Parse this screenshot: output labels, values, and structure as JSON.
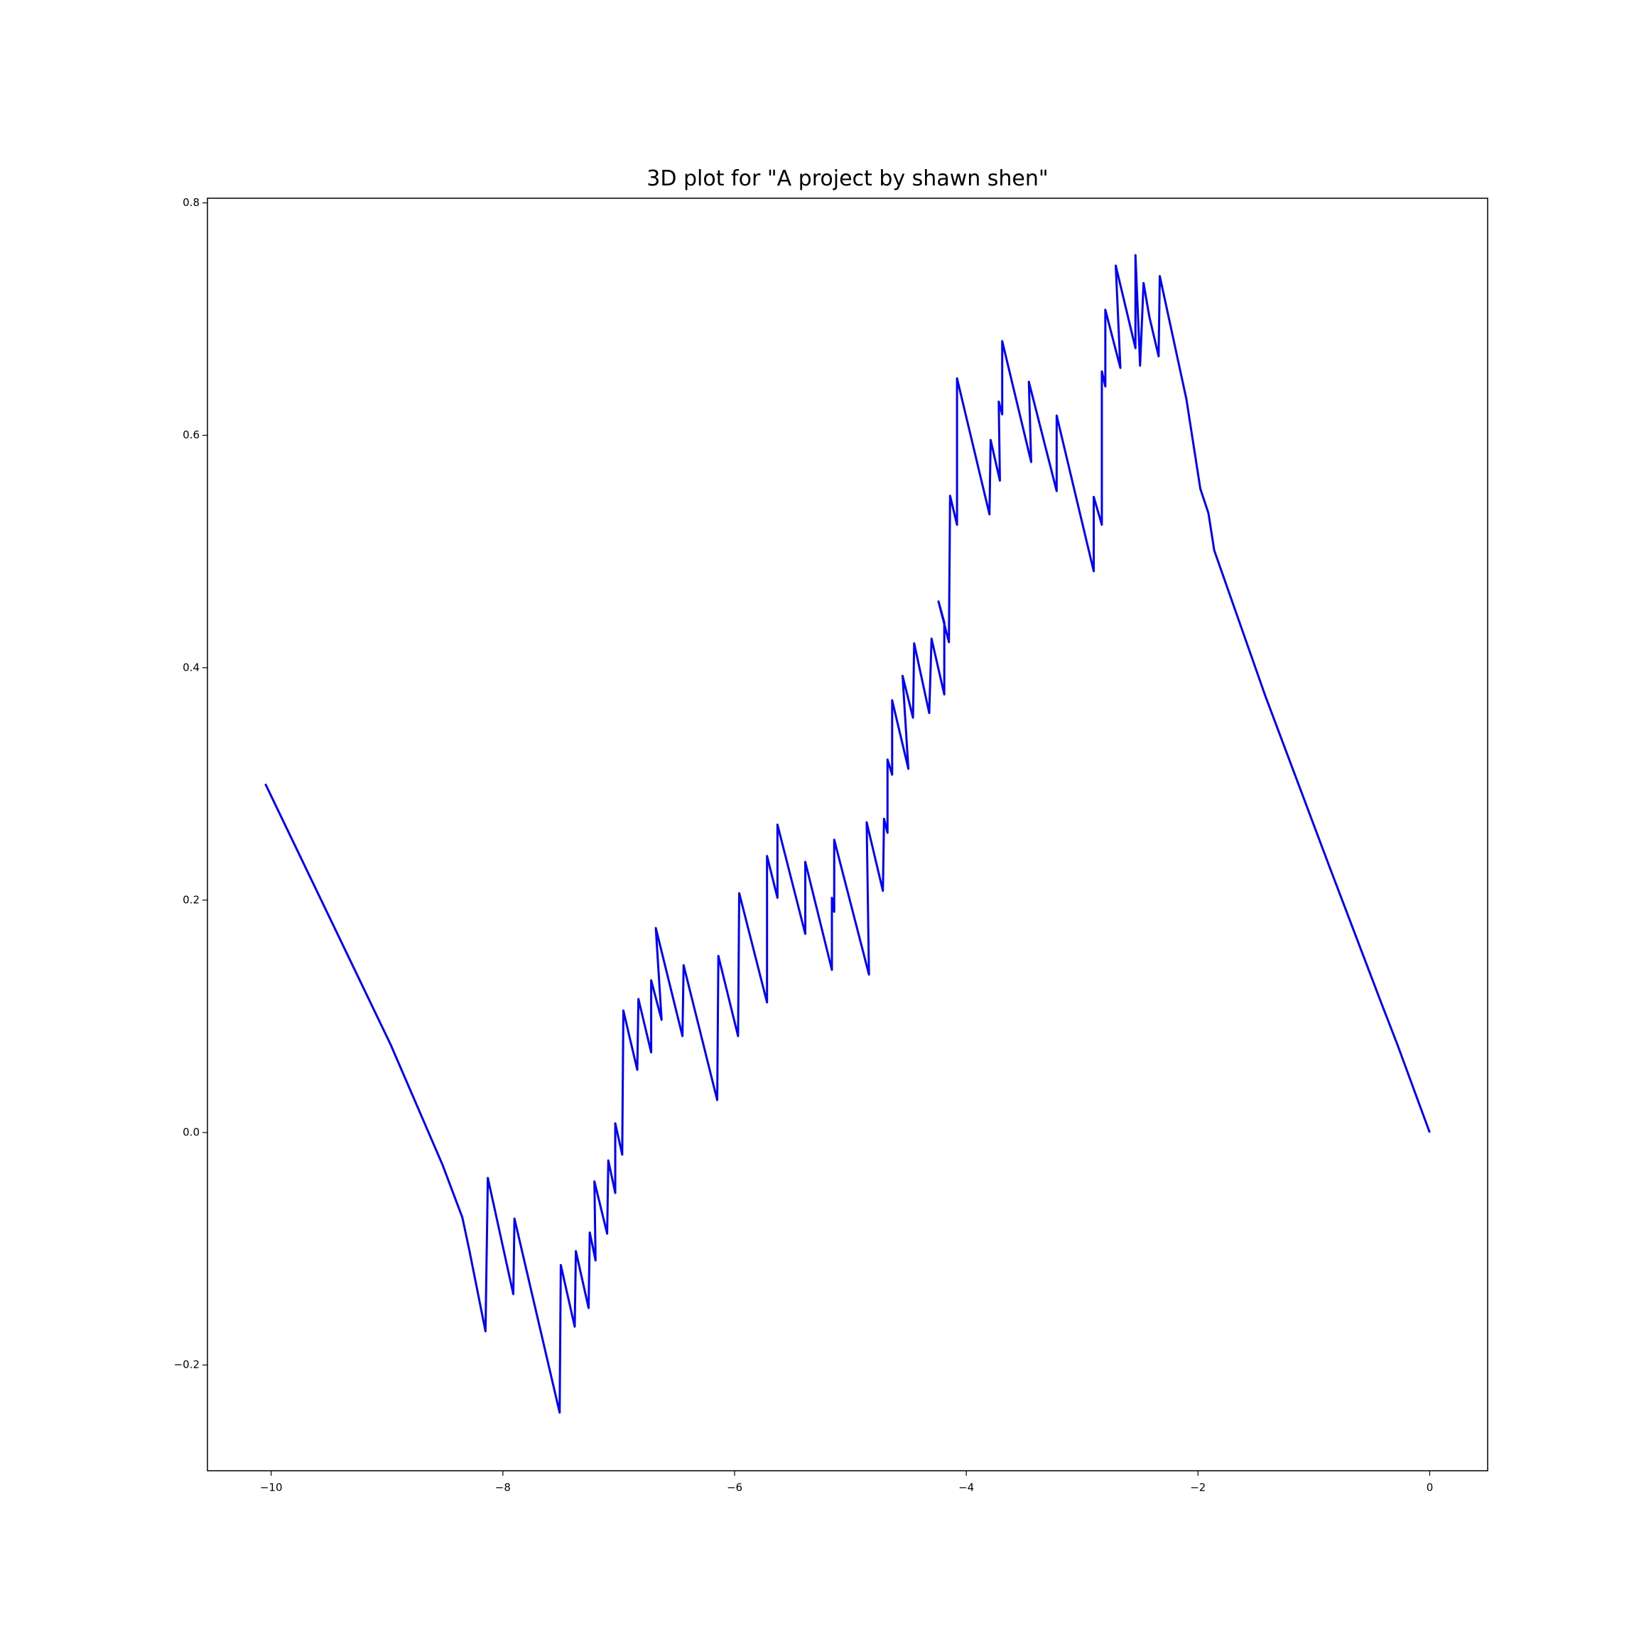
{
  "chart_data": {
    "type": "line",
    "title": "3D plot for \"A project by shawn shen\"",
    "x": [
      -10.05,
      -8.97,
      -8.52,
      -8.35,
      -8.29,
      -8.15,
      -8.13,
      -7.91,
      -7.9,
      -7.51,
      -7.5,
      -7.38,
      -7.37,
      -7.26,
      -7.25,
      -7.2,
      -7.21,
      -7.1,
      -7.09,
      -7.03,
      -7.03,
      -6.97,
      -6.96,
      -6.84,
      -6.83,
      -6.72,
      -6.72,
      -6.63,
      -6.68,
      -6.45,
      -6.44,
      -6.15,
      -6.14,
      -5.97,
      -5.96,
      -5.72,
      -5.72,
      -5.63,
      -5.63,
      -5.39,
      -5.39,
      -5.16,
      -5.16,
      -5.14,
      -5.14,
      -4.84,
      -4.86,
      -4.72,
      -4.71,
      -4.68,
      -4.68,
      -4.64,
      -4.64,
      -4.5,
      -4.55,
      -4.46,
      -4.45,
      -4.32,
      -4.3,
      -4.19,
      -4.19,
      -4.24,
      -4.15,
      -4.14,
      -4.08,
      -4.08,
      -3.8,
      -3.79,
      -3.71,
      -3.72,
      -3.69,
      -3.69,
      -3.44,
      -3.46,
      -3.22,
      -3.22,
      -2.9,
      -2.9,
      -2.83,
      -2.83,
      -2.8,
      -2.8,
      -2.67,
      -2.71,
      -2.54,
      -2.54,
      -2.5,
      -2.47,
      -2.42,
      -2.34,
      -2.33,
      -2.1,
      -1.98,
      -1.91,
      -1.86,
      -1.42,
      -0.87,
      -0.42,
      -0.28,
      0
    ],
    "series": [
      {
        "color": "#0000ff",
        "values": [
          0.3,
          0.076,
          -0.028,
          -0.073,
          -0.101,
          -0.171,
          -0.039,
          -0.139,
          -0.074,
          -0.241,
          -0.114,
          -0.167,
          -0.102,
          -0.151,
          -0.086,
          -0.11,
          -0.042,
          -0.087,
          -0.024,
          -0.052,
          0.008,
          -0.019,
          0.105,
          0.054,
          0.115,
          0.069,
          0.131,
          0.097,
          0.176,
          0.083,
          0.144,
          0.028,
          0.152,
          0.083,
          0.206,
          0.112,
          0.238,
          0.202,
          0.265,
          0.171,
          0.233,
          0.14,
          0.202,
          0.19,
          0.252,
          0.136,
          0.267,
          0.208,
          0.27,
          0.258,
          0.321,
          0.308,
          0.372,
          0.313,
          0.393,
          0.357,
          0.421,
          0.361,
          0.425,
          0.377,
          0.439,
          0.457,
          0.422,
          0.548,
          0.523,
          0.649,
          0.532,
          0.596,
          0.561,
          0.629,
          0.618,
          0.681,
          0.577,
          0.646,
          0.552,
          0.617,
          0.483,
          0.547,
          0.523,
          0.655,
          0.642,
          0.708,
          0.658,
          0.746,
          0.675,
          0.755,
          0.66,
          0.731,
          0.702,
          0.668,
          0.737,
          0.631,
          0.554,
          0.533,
          0.501,
          0.376,
          0.23,
          0.112,
          0.076,
          0
        ]
      }
    ],
    "xlim": [
      -10.55,
      0.5
    ],
    "ylim": [
      -0.291,
      0.804
    ],
    "xticks": [
      {
        "value": -10,
        "label": "−10"
      },
      {
        "value": -8,
        "label": "−8"
      },
      {
        "value": -6,
        "label": "−6"
      },
      {
        "value": -4,
        "label": "−4"
      },
      {
        "value": -2,
        "label": "−2"
      },
      0
    ],
    "yticks": [
      {
        "value": -0.2,
        "label": "−0.2"
      },
      {
        "value": 0,
        "label": "0.0"
      },
      0.2,
      0.4,
      0.6,
      0.8
    ],
    "grid": false
  }
}
